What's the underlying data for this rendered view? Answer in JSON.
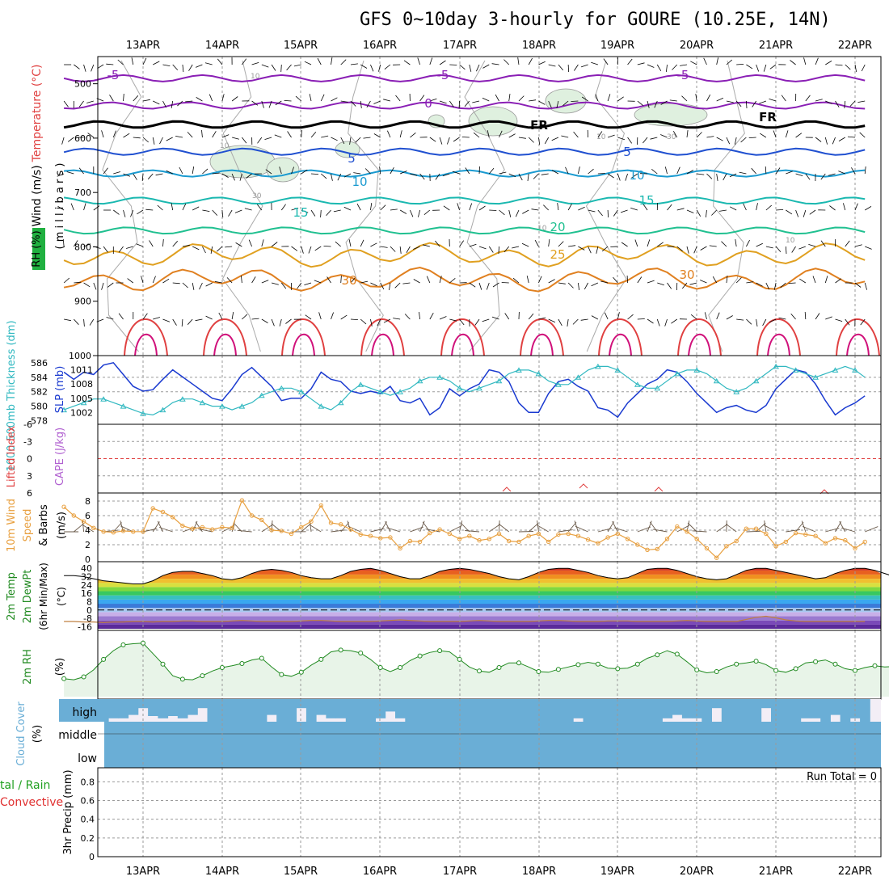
{
  "title": "GFS 0~10day 3-hourly for GOURE (10.25E, 14N)",
  "dates": [
    "13APR",
    "14APR",
    "15APR",
    "16APR",
    "17APR",
    "18APR",
    "19APR",
    "20APR",
    "21APR",
    "22APR"
  ],
  "chart_data": [
    {
      "type": "line",
      "name": "upper-air cross section",
      "yaxis_title_parts": [
        "Wind (m/s)",
        "Temperature (°C)",
        "RH (%)"
      ],
      "yaxis_units": "( m i l l i b a r s )",
      "y_ticks": [
        500,
        600,
        700,
        800,
        900,
        1000
      ],
      "ylim": [
        1000,
        450
      ],
      "isotherm_labels": [
        "-5",
        "-5",
        "-5",
        "0",
        "FR",
        "FR",
        "5",
        "5",
        "10",
        "10",
        "15",
        "15",
        "20",
        "25",
        "30",
        "30"
      ],
      "isotherms_mb": [
        {
          "t": "-5",
          "level": 490,
          "color": "#8a1fb5"
        },
        {
          "t": "0",
          "level": 540,
          "color": "#8a1fb5"
        },
        {
          "t": "FR",
          "level": 575,
          "color": "#000000"
        },
        {
          "t": "5",
          "level": 625,
          "color": "#2050d0"
        },
        {
          "t": "10",
          "level": 665,
          "color": "#1a9ad0"
        },
        {
          "t": "15",
          "level": 715,
          "color": "#1ab8b0"
        },
        {
          "t": "20",
          "level": 770,
          "color": "#20c090"
        },
        {
          "t": "25",
          "level": 815,
          "color": "#e0a020"
        },
        {
          "t": "30",
          "level": 860,
          "color": "#e08020"
        }
      ],
      "rh_contour_labels": [
        "10",
        "10",
        "10",
        "30",
        "30",
        "10",
        "10"
      ]
    },
    {
      "type": "line",
      "yaxis_title_left": "1000-500mb Thickness (dm)",
      "yaxis_title_right": "SLP (mb)",
      "thickness_ticks": [
        578,
        580,
        582,
        584,
        586
      ],
      "slp_ticks": [
        1002,
        1005,
        1008,
        1011
      ],
      "series": [
        {
          "name": "SLP (mb)",
          "color": "#1a3ad0",
          "values": [
            1010.5,
            1009,
            1010.5,
            1010,
            1012,
            1012.5,
            1010,
            1007.5,
            1006.5,
            1006.8,
            1009,
            1011,
            1009.5,
            1008,
            1006.5,
            1005,
            1004.5,
            1007,
            1010,
            1011.5,
            1009.5,
            1007.5,
            1004.5,
            1005,
            1005,
            1007,
            1010.5,
            1009,
            1008.5,
            1006.5,
            1006,
            1006.5,
            1006,
            1007.5,
            1004.5,
            1004,
            1005,
            1001.5,
            1003,
            1007,
            1005.5,
            1007,
            1008,
            1011,
            1010.5,
            1008.5,
            1004,
            1002,
            1002,
            1006,
            1008.5,
            1009,
            1007.5,
            1006.5,
            1003,
            1002.5,
            1001,
            1004,
            1006,
            1008,
            1009,
            1011,
            1010.5,
            1008.5,
            1006,
            1004,
            1002,
            1003,
            1003.5,
            1002.5,
            1002,
            1003.5,
            1007,
            1009,
            1011,
            1010.5,
            1008,
            1004.5,
            1001.5,
            1003,
            1004,
            1005.5
          ]
        },
        {
          "name": "1000-500mb Thickness (dm)",
          "color": "#30b8c0",
          "values": [
            579.5,
            580,
            580.5,
            581,
            581,
            580.5,
            580,
            579.5,
            579,
            578.8,
            579.5,
            580.5,
            581,
            581,
            580.5,
            580,
            580,
            579.5,
            580,
            580.5,
            581.5,
            582,
            582.5,
            582.5,
            582,
            581,
            580,
            579.5,
            580.5,
            582,
            583,
            582.5,
            582,
            581.5,
            582,
            582.5,
            583.5,
            584,
            584,
            583.5,
            582.5,
            582,
            582.5,
            583,
            583.5,
            584.5,
            585,
            585,
            584.5,
            583.5,
            583,
            583,
            584,
            585,
            585.5,
            585.5,
            585,
            584,
            583,
            582.5,
            582.5,
            583.5,
            584.5,
            585,
            585,
            584.5,
            583.5,
            582.5,
            582,
            582.5,
            583.5,
            584.5,
            585.5,
            585.5,
            585,
            584.5,
            584,
            584.5,
            585,
            585.5,
            585,
            584
          ]
        }
      ]
    },
    {
      "type": "line",
      "yaxis_title_left": "Lifted Index",
      "yaxis_title_right": "CAPE (J/kg)",
      "ticks": [
        "-6",
        "-3",
        "0",
        "3",
        "6"
      ],
      "series": [
        {
          "name": "Lifted Index",
          "color": "#e03030",
          "values": []
        }
      ]
    },
    {
      "type": "line",
      "yaxis_title": "10m Wind Speed & Barbs (m/s)",
      "yaxis_title_parts": [
        "10m Wind",
        "Speed",
        "& Barbs",
        "(m/s)"
      ],
      "ticks": [
        "0",
        "2",
        "4",
        "6",
        "8"
      ],
      "ylim": [
        0,
        9
      ],
      "series": [
        {
          "name": "10m Wind Speed",
          "color": "#e8a040",
          "values": [
            7.2,
            6,
            5.2,
            4.3,
            3.8,
            3.7,
            3.9,
            3.8,
            3.8,
            7,
            6.5,
            5.8,
            4.6,
            4.2,
            4.4,
            4.1,
            4.4,
            4.3,
            8.1,
            6,
            5.4,
            4,
            3.9,
            3.5,
            4.4,
            5.2,
            7.4,
            5,
            4.8,
            4.1,
            3.4,
            3.2,
            2.9,
            3,
            1.5,
            2.5,
            2.4,
            3.6,
            4.1,
            3.5,
            2.8,
            3.2,
            2.6,
            2.8,
            3.5,
            2.5,
            2.4,
            3.2,
            3.5,
            2.4,
            3.4,
            3.5,
            3.2,
            2.7,
            2.2,
            3,
            3.5,
            2.8,
            2,
            1.3,
            1.4,
            2.8,
            4.5,
            3.8,
            2.8,
            1.5,
            0.2,
            1.8,
            2.5,
            4.2,
            4.2,
            3.5,
            1.8,
            2.4,
            3.6,
            3.4,
            3.2,
            2.2,
            2.9,
            2.6,
            1.5,
            2.4
          ]
        }
      ]
    },
    {
      "type": "area",
      "yaxis_title_parts": [
        "2m Temp",
        "2m DewPt",
        "(6hr Min/Max)",
        "(°C)"
      ],
      "ticks": [
        "40",
        "32",
        "24",
        "16",
        "8",
        "0",
        "-8",
        "-16"
      ],
      "ylim": [
        -18,
        44
      ],
      "series": [
        {
          "name": "2m Temp",
          "color": "#c01818",
          "values": [
            33,
            33,
            32,
            30,
            28,
            27,
            26,
            25,
            25,
            28,
            33,
            36,
            37,
            37,
            35,
            33,
            30,
            29,
            31,
            35,
            38,
            39,
            38,
            36,
            33,
            31,
            30,
            30,
            33,
            37,
            39,
            40,
            38,
            35,
            32,
            30,
            30,
            33,
            37,
            39,
            40,
            39,
            37,
            35,
            32,
            30,
            29,
            32,
            36,
            39,
            40,
            40,
            38,
            36,
            33,
            31,
            30,
            31,
            35,
            39,
            40,
            40,
            38,
            35,
            32,
            30,
            29,
            30,
            34,
            38,
            40,
            40,
            38,
            36,
            34,
            32,
            30,
            31,
            35,
            38,
            40,
            40,
            38,
            35,
            32,
            29
          ]
        },
        {
          "name": "2m DewPt",
          "color": "#c08040",
          "values": [
            -11,
            -11,
            -11.5,
            -11.5,
            -12,
            -11.5,
            -11.5,
            -11,
            -11,
            -11.5,
            -11,
            -11,
            -10.5,
            -10.5,
            -11,
            -11,
            -11,
            -10.5,
            -10,
            -10.5,
            -11,
            -11,
            -11,
            -11,
            -10.5,
            -10,
            -10,
            -10.5,
            -11,
            -11,
            -11,
            -11,
            -10.5,
            -10,
            -9.5,
            -10,
            -10.5,
            -11,
            -11,
            -11,
            -11,
            -10.5,
            -10,
            -10.5,
            -11,
            -11,
            -11,
            -11,
            -10.5,
            -10,
            -10,
            -10.5,
            -11,
            -11,
            -11,
            -10.5,
            -10.5,
            -10.5,
            -11,
            -11,
            -11,
            -11,
            -10.5,
            -10,
            -10.5,
            -11,
            -11,
            -11,
            -11,
            -9,
            -7,
            -6,
            -7.5,
            -9.5,
            -10.5,
            -11,
            -11,
            -11,
            -11,
            -11,
            -11,
            -11
          ]
        }
      ]
    },
    {
      "type": "line",
      "yaxis_title": "2m RH (%)",
      "yaxis_title_parts": [
        "2m RH",
        "(%)"
      ],
      "ylim": [
        0,
        100
      ],
      "series": [
        {
          "name": "2m RH",
          "color": "#208a20",
          "values": [
            31,
            29,
            34,
            46,
            64,
            79,
            89,
            91,
            92,
            74,
            56,
            36,
            30,
            29,
            36,
            44,
            50,
            53,
            57,
            63,
            66,
            51,
            38,
            35,
            42,
            54,
            64,
            77,
            80,
            79,
            75,
            64,
            50,
            43,
            50,
            62,
            70,
            76,
            79,
            77,
            64,
            51,
            44,
            42,
            50,
            58,
            58,
            51,
            43,
            42,
            47,
            51,
            55,
            59,
            56,
            49,
            48,
            49,
            56,
            66,
            72,
            79,
            73,
            60,
            46,
            41,
            43,
            51,
            56,
            58,
            61,
            55,
            45,
            42,
            48,
            58,
            60,
            63,
            56,
            48,
            45,
            50,
            53,
            51,
            52
          ]
        }
      ]
    },
    {
      "type": "bar",
      "yaxis_title": "Cloud Cover (%)",
      "yaxis_title_parts": [
        "Cloud Cover",
        "(%)"
      ],
      "levels": [
        "high",
        "middle",
        "low"
      ],
      "high_cover_pct": [
        100,
        100,
        100,
        100,
        100,
        85,
        85,
        70,
        40,
        75,
        85,
        75,
        85,
        70,
        40,
        100,
        100,
        100,
        100,
        100,
        100,
        70,
        100,
        100,
        40,
        100,
        70,
        85,
        85,
        100,
        100,
        100,
        85,
        55,
        85,
        100,
        100,
        100,
        100,
        100,
        100,
        100,
        100,
        100,
        100,
        100,
        100,
        100,
        100,
        100,
        100,
        100,
        85,
        100,
        100,
        100,
        100,
        100,
        100,
        100,
        100,
        85,
        70,
        85,
        85,
        100,
        40,
        100,
        100,
        100,
        100,
        40,
        100,
        100,
        100,
        85,
        85,
        100,
        70,
        100,
        85,
        100
      ],
      "middle_cover_pct": 100,
      "low_cover_pct": 100
    },
    {
      "type": "bar",
      "yaxis_title_left_parts": [
        "tal / Rain",
        "Convective"
      ],
      "yaxis_title": "3hr Precip (mm)",
      "annotation": "Run Total = 0",
      "ticks": [
        "0",
        "0.2",
        "0.4",
        "0.6",
        "0.8"
      ],
      "ylim": [
        0,
        0.95
      ],
      "series": [
        {
          "name": "Total",
          "color": "#20a020",
          "values": []
        },
        {
          "name": "Convective",
          "color": "#e03030",
          "values": []
        }
      ]
    }
  ],
  "colors": {
    "grid": "#9a9a9a",
    "frame": "#000000",
    "cloud": "#6aaed6",
    "rh_fill": "#e8f4e8",
    "precip_total_label": "#20a020",
    "precip_conv_label": "#e03030"
  }
}
